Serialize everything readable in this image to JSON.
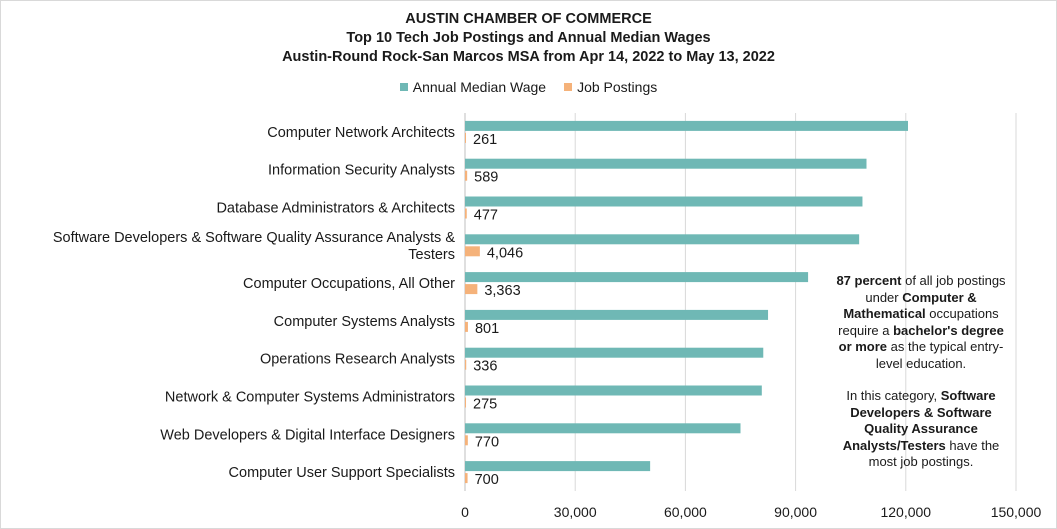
{
  "chart_data": {
    "type": "bar",
    "orientation": "horizontal",
    "title": "AUSTIN CHAMBER OF COMMERCE",
    "subtitle": "Top 10 Tech Job Postings and Annual Median Wages",
    "subtitle2": "Austin-Round Rock-San Marcos MSA from Apr 14, 2022 to May 13, 2022",
    "legend_position": "top",
    "grid": true,
    "xlim": [
      0,
      150000
    ],
    "x_ticks": [
      "0",
      "30,000",
      "60,000",
      "90,000",
      "120,000",
      "150,000"
    ],
    "x_tick_values": [
      0,
      30000,
      60000,
      90000,
      120000,
      150000
    ],
    "categories": [
      "Computer Network Architects",
      "Information Security Analysts",
      "Database Administrators & Architects",
      "Software Developers & Software Quality Assurance Analysts & Testers",
      "Computer Occupations, All Other",
      "Computer Systems Analysts",
      "Operations Research Analysts",
      "Network & Computer Systems Administrators",
      "Web Developers & Digital Interface Designers",
      "Computer User Support Specialists"
    ],
    "category_lines": [
      [
        "Computer Network Architects"
      ],
      [
        "Information Security Analysts"
      ],
      [
        "Database Administrators & Architects"
      ],
      [
        "Software Developers & Software Quality Assurance Analysts &",
        "Testers"
      ],
      [
        "Computer Occupations, All Other"
      ],
      [
        "Computer Systems Analysts"
      ],
      [
        "Operations Research Analysts"
      ],
      [
        "Network & Computer Systems Administrators"
      ],
      [
        "Web Developers & Digital Interface Designers"
      ],
      [
        "Computer User Support Specialists"
      ]
    ],
    "series": [
      {
        "name": "Annual Median Wage",
        "color": "#6fb8b5",
        "values": [
          120600,
          109300,
          108200,
          107300,
          93400,
          82500,
          81200,
          80800,
          75000,
          50400
        ]
      },
      {
        "name": "Job Postings",
        "color": "#f5b27a",
        "values": [
          261,
          589,
          477,
          4046,
          3363,
          801,
          336,
          275,
          770,
          700
        ],
        "labels": [
          "261",
          "589",
          "477",
          "4,046",
          "3,363",
          "801",
          "336",
          "275",
          "770",
          "700"
        ]
      }
    ]
  },
  "annotation": {
    "p1_b1": "87 percent",
    "p1_t1": " of all job postings under ",
    "p1_b2": "Computer & Mathematical",
    "p1_t2": " occupations require a ",
    "p1_b3": "bachelor's degree or more",
    "p1_t3": " as the typical entry-level education.",
    "p2_t1": "In this category, ",
    "p2_b1": "Software Developers & Software Quality Assurance Analysts/Testers",
    "p2_t2": " have the most job postings."
  }
}
